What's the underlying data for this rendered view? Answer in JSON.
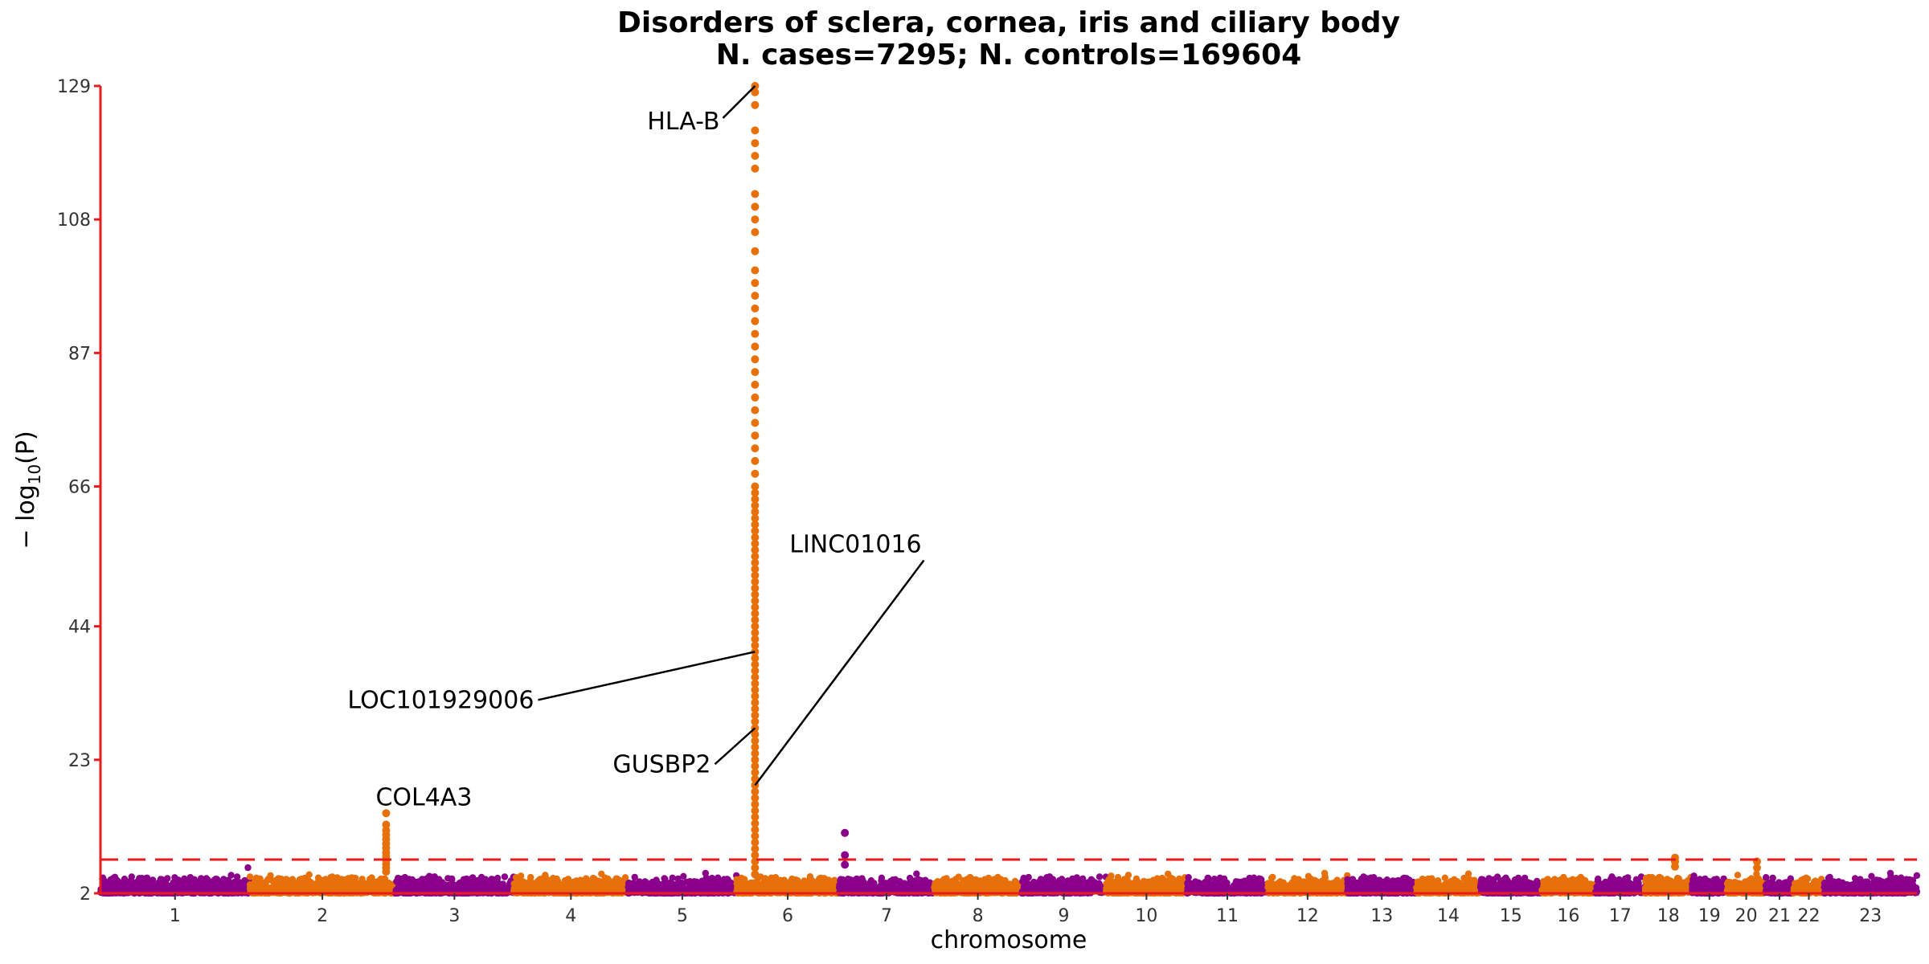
{
  "chart_data": {
    "type": "scatter",
    "subtype": "manhattan",
    "title": "Disorders of sclera, cornea, iris and ciliary body",
    "subtitle": "N. cases=7295; N. controls=169604",
    "xlabel": "chromosome",
    "ylabel_main": "− log",
    "ylabel_sub": "10",
    "ylabel_tail": "(P)",
    "ylim": [
      2,
      129
    ],
    "yticks": [
      2,
      23,
      44,
      66,
      87,
      108,
      129
    ],
    "significance_threshold": 7.3,
    "colors": {
      "odd": "#8B008B",
      "even": "#E8700A",
      "axis": "#E81C1C",
      "threshold": "#E81C1C"
    },
    "chromosomes": [
      {
        "label": "1",
        "length": 249
      },
      {
        "label": "2",
        "length": 243
      },
      {
        "label": "3",
        "length": 198
      },
      {
        "label": "4",
        "length": 191
      },
      {
        "label": "5",
        "length": 181
      },
      {
        "label": "6",
        "length": 171
      },
      {
        "label": "7",
        "length": 159
      },
      {
        "label": "8",
        "length": 146
      },
      {
        "label": "9",
        "length": 141
      },
      {
        "label": "10",
        "length": 135
      },
      {
        "label": "11",
        "length": 135
      },
      {
        "label": "12",
        "length": 133
      },
      {
        "label": "13",
        "length": 115
      },
      {
        "label": "14",
        "length": 107
      },
      {
        "label": "15",
        "length": 102
      },
      {
        "label": "16",
        "length": 90
      },
      {
        "label": "17",
        "length": 83
      },
      {
        "label": "18",
        "length": 78
      },
      {
        "label": "19",
        "length": 59
      },
      {
        "label": "20",
        "length": 64
      },
      {
        "label": "21",
        "length": 47
      },
      {
        "label": "22",
        "length": 51
      },
      {
        "label": "23",
        "length": 155
      }
    ],
    "peaks": [
      {
        "chrom": "2",
        "pos": 228,
        "values": [
          14.6,
          12.8,
          11.9,
          11.2,
          10.5,
          9.8,
          9.1,
          8.4,
          7.8,
          7.2,
          6.6,
          6.0,
          5.4
        ]
      },
      {
        "chrom": "6",
        "pos": 31,
        "values": [
          129,
          128,
          126,
          122,
          120,
          118,
          116,
          112,
          110,
          108,
          106,
          103,
          100,
          98,
          96,
          94,
          92,
          90,
          88,
          86,
          84,
          82,
          80,
          78,
          76,
          74,
          72,
          70,
          68,
          66,
          65,
          64,
          63,
          62,
          61,
          60,
          59,
          58,
          57,
          56,
          55,
          54,
          53,
          52,
          51,
          50,
          49,
          48,
          47,
          46,
          45,
          44,
          43,
          42,
          41,
          40,
          39,
          38,
          37,
          36,
          35,
          34,
          33,
          32,
          31,
          30,
          29,
          28,
          27,
          26,
          25,
          24,
          23,
          22,
          21,
          20,
          19,
          18,
          17,
          16,
          15,
          14,
          13,
          12,
          11,
          10,
          9,
          8,
          7,
          6,
          5
        ]
      },
      {
        "chrom": "7",
        "pos": 10,
        "values": [
          11.5,
          8.0,
          6.5
        ]
      },
      {
        "chrom": "18",
        "pos": 50,
        "values": [
          7.6,
          7.0,
          6.2
        ]
      },
      {
        "chrom": "20",
        "pos": 50,
        "values": [
          7.0,
          6.0
        ]
      }
    ],
    "annotations": [
      {
        "label": "HLA-B",
        "chrom": "6",
        "pos": 31,
        "y": 129
      },
      {
        "label": "LOC101929006",
        "chrom": "6",
        "pos": 31,
        "y": 40
      },
      {
        "label": "GUSBP2",
        "chrom": "6",
        "pos": 31,
        "y": 28
      },
      {
        "label": "LINC01016",
        "chrom": "6",
        "pos": 31,
        "y": 19
      },
      {
        "label": "COL4A3",
        "chrom": "2",
        "pos": 228,
        "y": 14.6
      }
    ]
  }
}
